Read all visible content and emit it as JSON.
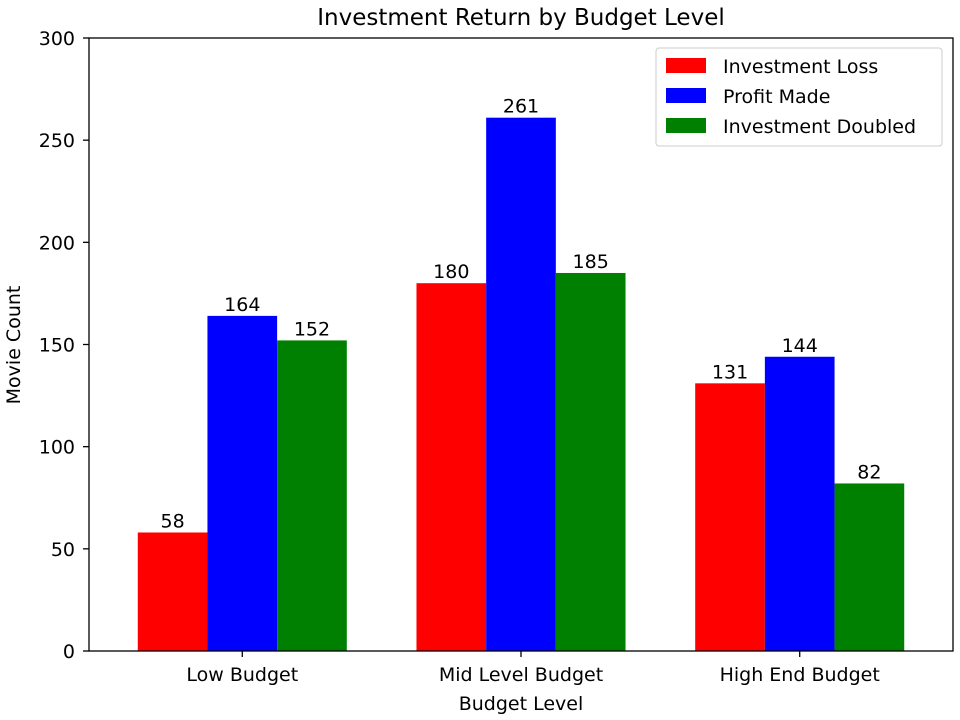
{
  "chart_data": {
    "type": "bar",
    "title": "Investment Return by Budget Level",
    "xlabel": "Budget Level",
    "ylabel": "Movie Count",
    "categories": [
      "Low Budget",
      "Mid Level Budget",
      "High End Budget"
    ],
    "series": [
      {
        "name": "Investment Loss",
        "color": "#ff0000",
        "values": [
          58,
          180,
          131
        ]
      },
      {
        "name": "Profit Made",
        "color": "#0000ff",
        "values": [
          164,
          261,
          144
        ]
      },
      {
        "name": "Investment Doubled",
        "color": "#008000",
        "values": [
          152,
          185,
          82
        ]
      }
    ],
    "ylim": [
      0,
      300
    ],
    "yticks": [
      0,
      50,
      100,
      150,
      200,
      250,
      300
    ],
    "grid": false,
    "legend_position": "top-right"
  }
}
